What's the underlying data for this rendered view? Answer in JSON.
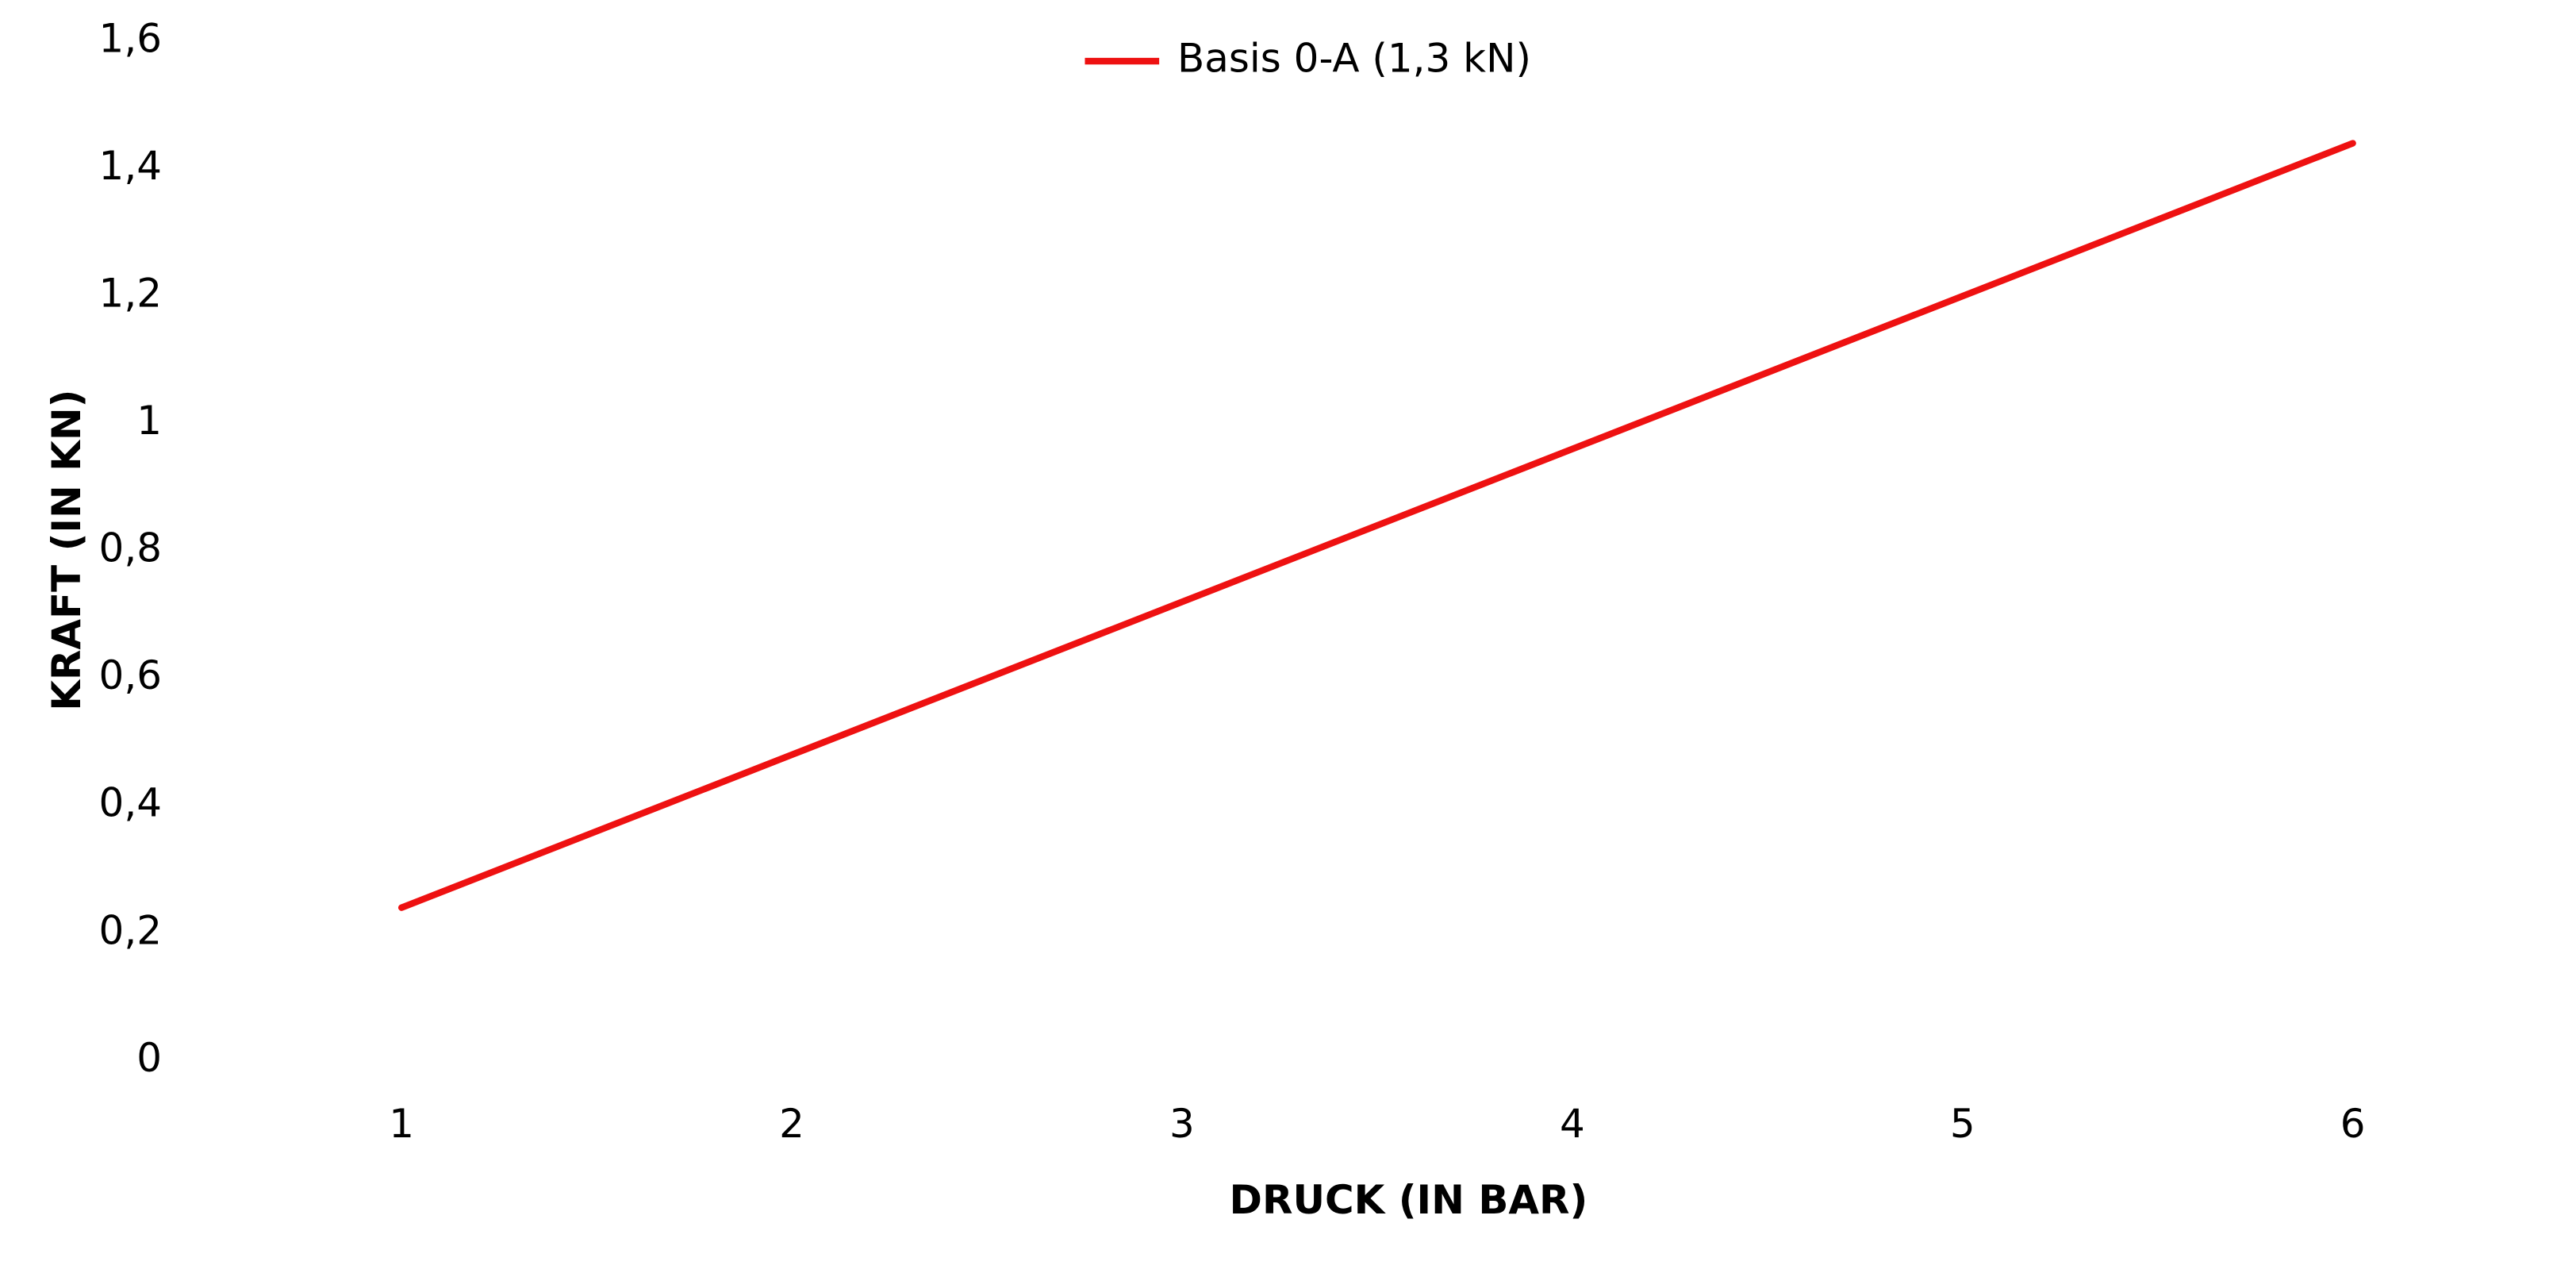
{
  "chart_data": {
    "type": "line",
    "x_label": "DRUCK (IN BAR)",
    "y_label": "KRAFT (IN KN)",
    "categories": [
      "1",
      "2",
      "3",
      "4",
      "5",
      "6"
    ],
    "series": [
      {
        "name": "Basis 0-A (1,3 kN)",
        "color": "#ee1111",
        "values": [
          0.24,
          0.48,
          0.72,
          0.96,
          1.2,
          1.44
        ]
      }
    ],
    "ylim": [
      0,
      1.6
    ],
    "yticks": [
      0,
      {
        "value": 0.2,
        "label": "0,2"
      },
      {
        "value": 0.4,
        "label": "0,4"
      },
      {
        "value": 0.6,
        "label": "0,6"
      },
      {
        "value": 0.8,
        "label": "0,8"
      },
      1,
      {
        "value": 1.2,
        "label": "1,2"
      },
      {
        "value": 1.4,
        "label": "1,4"
      },
      {
        "value": 1.6,
        "label": "1,6"
      }
    ],
    "grid": false,
    "legend": "top"
  }
}
